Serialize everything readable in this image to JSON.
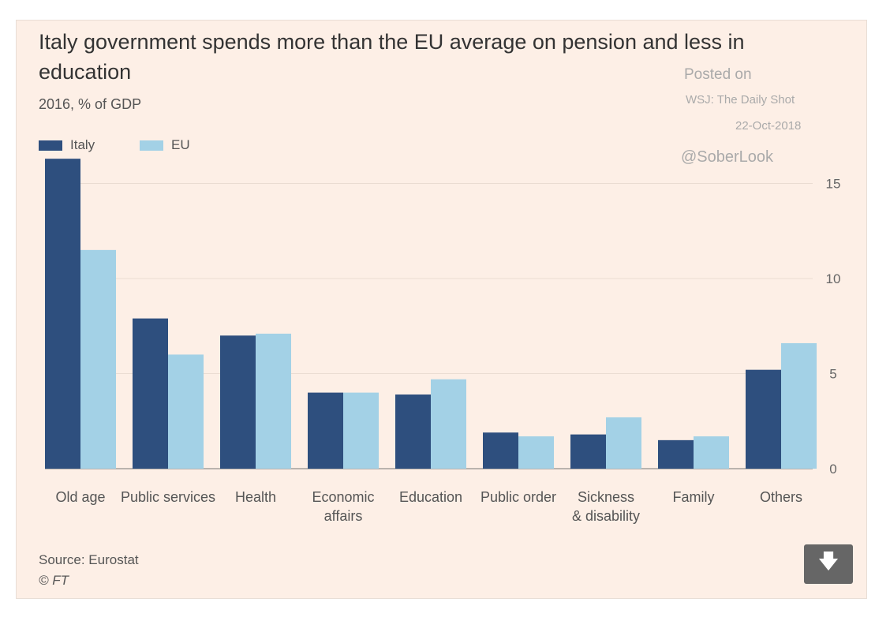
{
  "chart_data": {
    "type": "bar",
    "title": "Italy government spends more than the EU average on pension and less in education",
    "subtitle": "2016, % of GDP",
    "categories": [
      "Old age",
      "Public services",
      "Health",
      "Economic affairs",
      "Education",
      "Public order",
      "Sickness & disability",
      "Family",
      "Others"
    ],
    "category_lines": [
      [
        "Old age"
      ],
      [
        "Public services"
      ],
      [
        "Health"
      ],
      [
        "Economic",
        "affairs"
      ],
      [
        "Education"
      ],
      [
        "Public order"
      ],
      [
        "Sickness",
        "& disability"
      ],
      [
        "Family"
      ],
      [
        "Others"
      ]
    ],
    "series": [
      {
        "name": "Italy",
        "color": "#2e4f7e",
        "values": [
          16.3,
          7.9,
          7.0,
          4.0,
          3.9,
          1.9,
          1.8,
          1.5,
          5.2
        ]
      },
      {
        "name": "EU",
        "color": "#a3d1e6",
        "values": [
          11.5,
          6.0,
          7.1,
          4.0,
          4.7,
          1.7,
          2.7,
          1.7,
          6.6
        ]
      }
    ],
    "yticks": [
      0,
      5,
      10,
      15
    ],
    "ylim": [
      0,
      17
    ],
    "ylabel": "",
    "xlabel": "",
    "grid": true,
    "legend": "top-left",
    "y_axis_side": "right"
  },
  "watermark": {
    "posted": "Posted on",
    "source": "WSJ: The Daily Shot",
    "date": "22-Oct-2018",
    "handle": "@SoberLook"
  },
  "footer": {
    "source": "Source: Eurostat",
    "copyright": "© FT"
  },
  "download": {
    "icon": "download-icon",
    "glyph": "🡇"
  }
}
